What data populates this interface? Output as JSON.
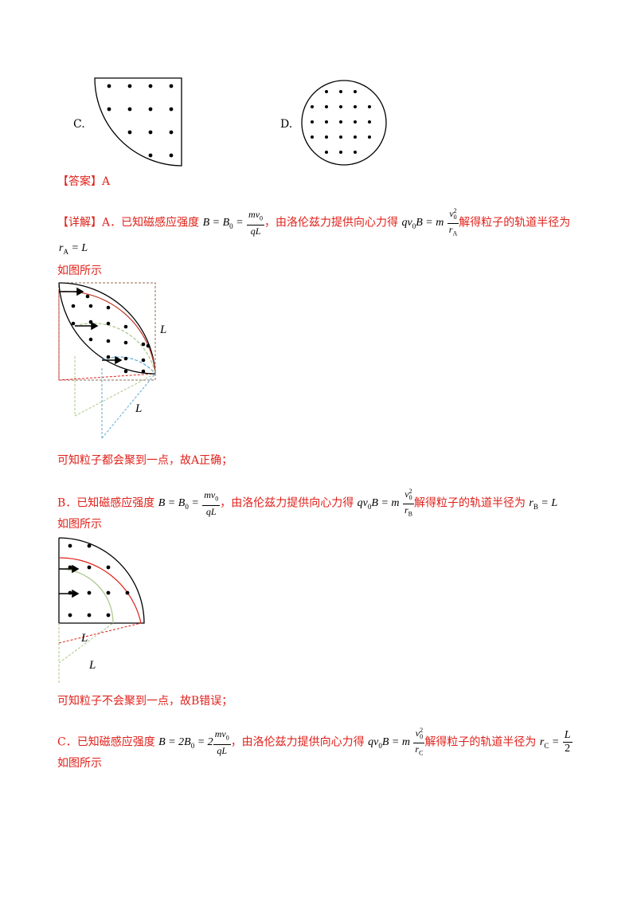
{
  "options": {
    "c_label": "C.",
    "d_label": "D."
  },
  "answer": {
    "tag": "【答案】",
    "value": "A"
  },
  "detail": {
    "tag": "【详解】",
    "a_prefix": "A．已知磁感应强度",
    "a_formula_b": "B = B",
    "a_formula_sub": "0",
    "a_frac_num": "mv",
    "a_frac_num_sub": "0",
    "a_frac_den": "qL",
    "a_middle": "，由洛伦兹力提供向心力得",
    "a_force_lhs": "qv",
    "a_force_sub": "0",
    "a_force_b": "B = m",
    "a_force_num": "v",
    "a_force_num_sub": "0",
    "a_force_num_sup": "2",
    "a_force_den": "r",
    "a_force_den_sub": "A",
    "a_suffix": "解得粒子的轨道半径为",
    "a_result": "r",
    "a_result_sub": "A",
    "a_result_rhs": "= L",
    "a_fig_caption": "如图所示",
    "a_fig_label_L1": "L",
    "a_fig_label_L2": "L",
    "a_conclusion": "可知粒子都会聚到一点，故A正确；",
    "b_prefix": "B．已知磁感应强度",
    "b_formula_b": "B = B",
    "b_formula_sub": "0",
    "b_frac_num": "mv",
    "b_frac_num_sub": "0",
    "b_frac_den": "qL",
    "b_middle": "，由洛伦兹力提供向心力得",
    "b_force_lhs": "qv",
    "b_force_sub": "0",
    "b_force_b": "B = m",
    "b_force_num": "v",
    "b_force_num_sub": "0",
    "b_force_num_sup": "2",
    "b_force_den": "r",
    "b_force_den_sub": "B",
    "b_suffix": "解得粒子的轨道半径为",
    "b_result": "r",
    "b_result_sub": "B",
    "b_result_rhs": "= L",
    "b_fig_caption": "如图所示",
    "b_fig_label_L1": "L",
    "b_fig_label_L2": "L",
    "b_conclusion": "可知粒子不会聚到一点，故B错误；",
    "c_prefix": "C．已知磁感应强度",
    "c_formula_b": "B = 2B",
    "c_formula_sub": "0",
    "c_formula_eq": "= 2",
    "c_frac_num": "mv",
    "c_frac_num_sub": "0",
    "c_frac_den": "qL",
    "c_middle": "，由洛伦兹力提供向心力得",
    "c_force_lhs": "qv",
    "c_force_sub": "0",
    "c_force_b": "B = m",
    "c_force_num": "v",
    "c_force_num_sub": "0",
    "c_force_num_sup": "2",
    "c_force_den": "r",
    "c_force_den_sub": "C",
    "c_suffix": "解得粒子的轨道半径为",
    "c_result": "r",
    "c_result_sub": "C",
    "c_result_eq": "=",
    "c_result_num": "L",
    "c_result_den": "2",
    "c_fig_caption": "如图所示"
  },
  "colors": {
    "red": "#e0211b",
    "orbit_red": "#c0392b",
    "orbit_green": "#a8c78a",
    "orbit_blue": "#5aa9d6",
    "dashed_brown": "#8b6b55"
  }
}
